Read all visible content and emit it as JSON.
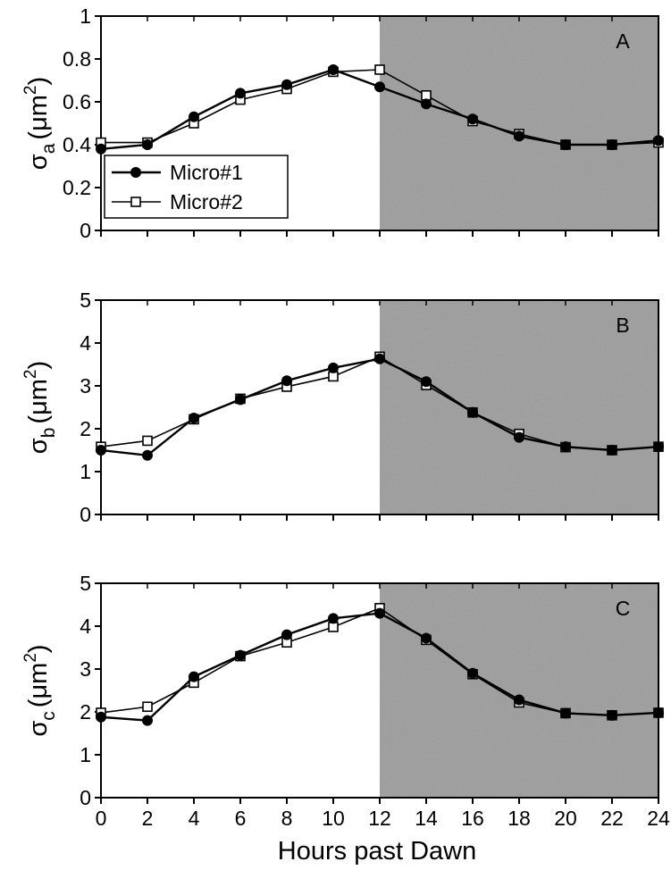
{
  "figure": {
    "xlabel": "Hours past Dawn",
    "x_ticks": [
      0,
      2,
      4,
      6,
      8,
      10,
      12,
      14,
      16,
      18,
      20,
      22,
      24
    ],
    "dark_period": [
      12,
      24
    ],
    "dark_color": "#a9a9a9",
    "legend": {
      "placement": "lower-left of panel A",
      "entries": [
        {
          "label": "Micro#1",
          "marker": "filled-circle"
        },
        {
          "label": "Micro#2",
          "marker": "open-square"
        }
      ]
    }
  },
  "chart_data": [
    {
      "type": "line",
      "panel_label": "A",
      "ylabel_symbol": "σ",
      "ylabel_sub": "a",
      "ylabel_unit": "(μm",
      "ylabel_sup": "2",
      "ylabel_close": ")",
      "ylim": [
        0,
        1
      ],
      "y_ticks": [
        "0",
        "0.2",
        "0.4",
        "0.6",
        "0.8",
        "1"
      ],
      "x": [
        0,
        2,
        4,
        6,
        8,
        10,
        12,
        14,
        16,
        18,
        20,
        22,
        24
      ],
      "series": [
        {
          "name": "Micro#1",
          "values": [
            0.38,
            0.4,
            0.53,
            0.64,
            0.68,
            0.75,
            0.67,
            0.59,
            0.52,
            0.44,
            0.4,
            0.4,
            0.42
          ]
        },
        {
          "name": "Micro#2",
          "values": [
            0.41,
            0.41,
            0.5,
            0.61,
            0.66,
            0.74,
            0.75,
            0.63,
            0.51,
            0.45,
            0.4,
            0.4,
            0.41
          ]
        }
      ]
    },
    {
      "type": "line",
      "panel_label": "B",
      "ylabel_symbol": "σ",
      "ylabel_sub": "b",
      "ylabel_unit": "(μm",
      "ylabel_sup": "2",
      "ylabel_close": ")",
      "ylim": [
        0,
        5
      ],
      "y_ticks": [
        "0",
        "1",
        "2",
        "3",
        "4",
        "5"
      ],
      "x": [
        0,
        2,
        4,
        6,
        8,
        10,
        12,
        14,
        16,
        18,
        20,
        22,
        24
      ],
      "series": [
        {
          "name": "Micro#1",
          "values": [
            1.5,
            1.38,
            2.25,
            2.68,
            3.12,
            3.42,
            3.63,
            3.1,
            2.38,
            1.8,
            1.58,
            1.5,
            1.58
          ]
        },
        {
          "name": "Micro#2",
          "values": [
            1.58,
            1.72,
            2.22,
            2.7,
            2.98,
            3.22,
            3.68,
            3.02,
            2.38,
            1.88,
            1.57,
            1.5,
            1.58
          ]
        }
      ]
    },
    {
      "type": "line",
      "panel_label": "C",
      "ylabel_symbol": "σ",
      "ylabel_sub": "c",
      "ylabel_unit": "(μm",
      "ylabel_sup": "2",
      "ylabel_close": ")",
      "ylim": [
        0,
        5
      ],
      "y_ticks": [
        "0",
        "1",
        "2",
        "3",
        "4",
        "5"
      ],
      "x": [
        0,
        2,
        4,
        6,
        8,
        10,
        12,
        14,
        16,
        18,
        20,
        22,
        24
      ],
      "series": [
        {
          "name": "Micro#1",
          "values": [
            1.88,
            1.8,
            2.82,
            3.32,
            3.8,
            4.18,
            4.3,
            3.72,
            2.9,
            2.28,
            1.97,
            1.92,
            1.98
          ]
        },
        {
          "name": "Micro#2",
          "values": [
            1.98,
            2.12,
            2.68,
            3.3,
            3.62,
            3.98,
            4.42,
            3.68,
            2.88,
            2.22,
            1.97,
            1.92,
            1.98
          ]
        }
      ]
    }
  ]
}
